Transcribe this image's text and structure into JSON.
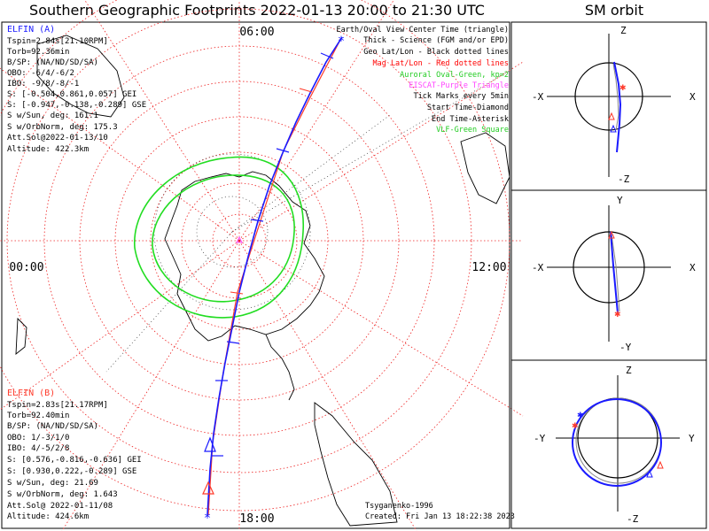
{
  "title": "Southern Geographic Footprints 2022-01-13 20:00 to 21:30 UTC",
  "sm_title": "SM orbit",
  "clock_labels": {
    "top": "06:00",
    "left": "00:00",
    "right": "12:00",
    "bottom": "18:00"
  },
  "elfin_a": {
    "heading": "ELFIN (A)",
    "lines": [
      "Tspin=2.84s[21.10RPM]",
      "Torb=92.36min",
      "B/SP: (NA/ND/SD/SA)",
      "OBO: -6/4/-6/2",
      "IBO: -9/8/-8/-1",
      "S: [-0.504,0.861,0.057] GEI",
      "S: [-0.947,-0.138,-0.289] GSE",
      "S w/Sun, deg: 161.1",
      "S w/OrbNorm, deg: 175.3",
      "Att.Sol@2022-01-13/10",
      "Altitude: 422.3km"
    ],
    "color": "#1a1aff"
  },
  "elfin_b": {
    "heading": "ELFIN (B)",
    "lines": [
      "Tspin=2.83s[21.17RPM]",
      "Torb=92.40min",
      "B/SP: (NA/ND/SD/SA)",
      "OBO: 1/-3/1/0",
      "IBO: 4/-5/2/8",
      "S: [0.576,-0.816,-0.636] GEI",
      "S: [0.930,0.222,-0.289] GSE",
      "S w/Sun, deg: 21.69",
      "S w/OrbNorm, deg: 1.643",
      "Att.Sol@ 2022-01-11/08",
      "Altitude: 424.6km"
    ],
    "color": "#ff3a2a"
  },
  "legend": [
    {
      "text": "Earth/Oval View Center Time (triangle)",
      "color": "#000000"
    },
    {
      "text": "Thick - Science (FGM and/or EPD)",
      "color": "#000000"
    },
    {
      "text": "Geo Lat/Lon - Black dotted lines",
      "color": "#000000"
    },
    {
      "text": "Mag Lat/Lon - Red dotted lines",
      "color": "#ff0000"
    },
    {
      "text": "Auroral Oval-Green, kp=2",
      "color": "#22cc22"
    },
    {
      "text": "EISCAT-Purple Triangle",
      "color": "#ff44ff"
    },
    {
      "text": "Tick Marks every 5min",
      "color": "#000000"
    },
    {
      "text": "Start Time-Diamond",
      "color": "#000000"
    },
    {
      "text": "End Time-Asterisk",
      "color": "#000000"
    },
    {
      "text": "VLF-Green Square",
      "color": "#22cc22"
    }
  ],
  "credit": {
    "author": "Tsyganenko-1996",
    "created": "Created: Fri Jan 13 18:22:38 2023"
  },
  "sm_panels": [
    {
      "top": "Z",
      "bottom": "-Z",
      "left": "-X",
      "right": "X"
    },
    {
      "top": "Y",
      "bottom": "-Y",
      "left": "-X",
      "right": "X"
    },
    {
      "top": "Z",
      "bottom": "-Z",
      "left": "-Y",
      "right": "Y"
    }
  ],
  "colors": {
    "mag_grid": "#ee2222",
    "geo_grid": "#000000",
    "oval": "#22dd22",
    "track_a": "#1a1aff",
    "track_b": "#ff3a2a"
  }
}
